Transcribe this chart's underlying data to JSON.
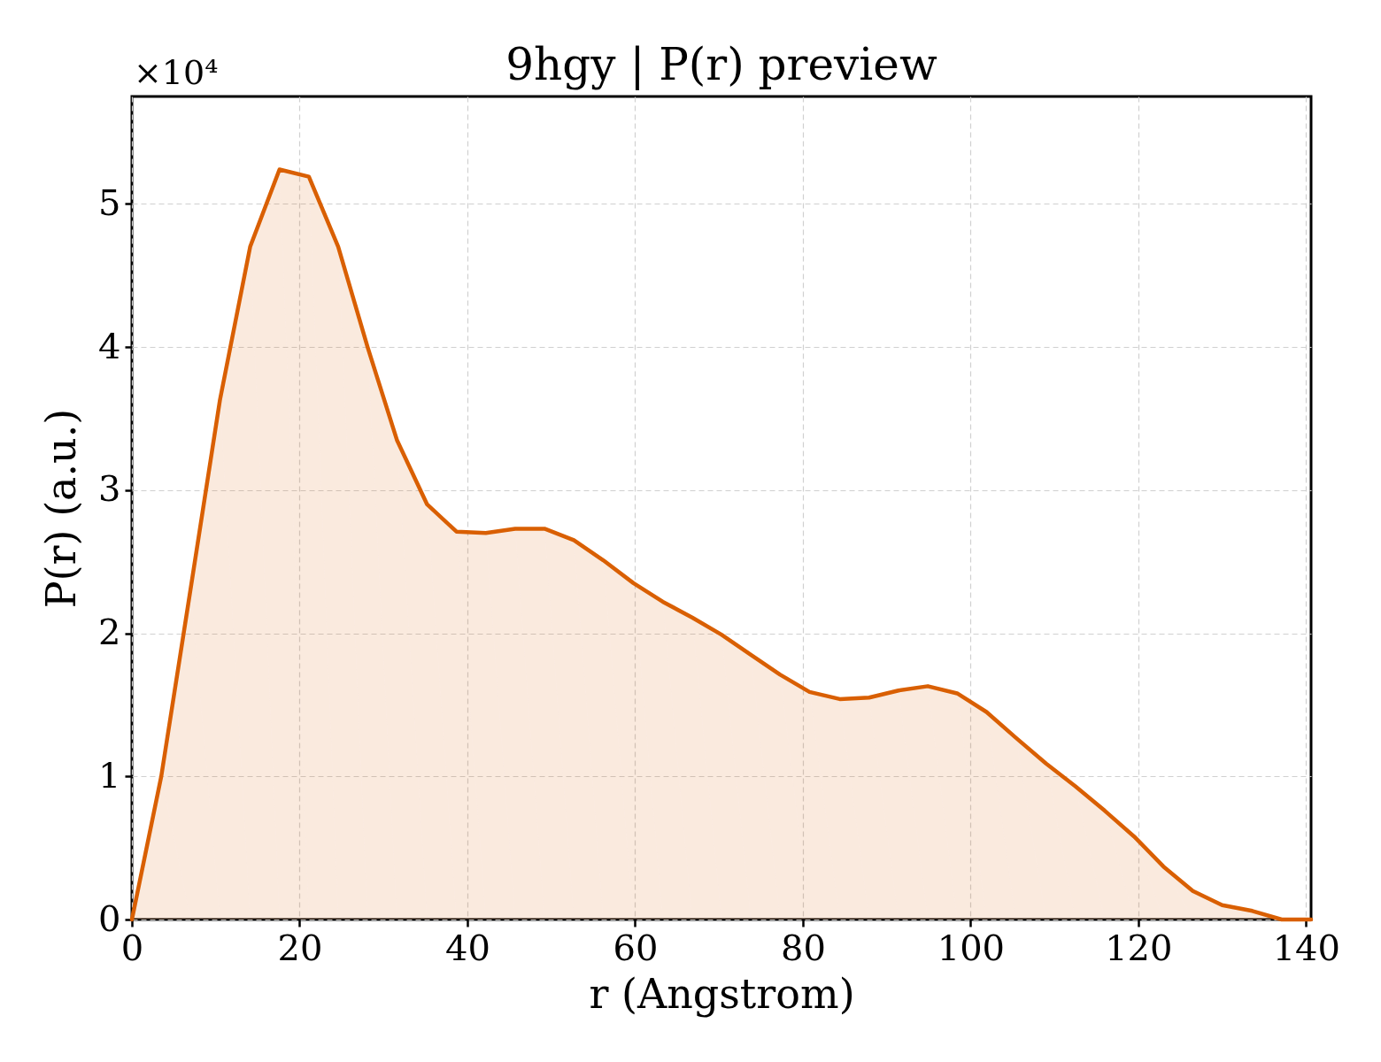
{
  "chart_data": {
    "type": "area",
    "title": "9hgy | P(r) preview",
    "xlabel": "r (Angstrom)",
    "ylabel": "P(r) (a.u.)",
    "annotations": [
      "×10⁴"
    ],
    "x": [
      0,
      3.5,
      7.0,
      10.5,
      14.1,
      17.6,
      21.1,
      24.6,
      28.1,
      31.6,
      35.2,
      38.7,
      42.2,
      45.7,
      49.2,
      52.7,
      56.2,
      59.8,
      63.3,
      66.8,
      70.3,
      73.8,
      77.3,
      80.8,
      84.4,
      87.9,
      91.4,
      94.9,
      98.4,
      101.9,
      105.4,
      109.0,
      112.5,
      116.0,
      119.5,
      123.0,
      126.5,
      130.0,
      133.6,
      137.1,
      140.6
    ],
    "series": [
      {
        "color": "#d95f02",
        "values": [
          0,
          1.0,
          2.31,
          3.63,
          4.7,
          5.24,
          5.19,
          4.7,
          4.0,
          3.35,
          2.9,
          2.71,
          2.7,
          2.73,
          2.73,
          2.65,
          2.51,
          2.35,
          2.22,
          2.11,
          1.99,
          1.85,
          1.71,
          1.59,
          1.54,
          1.55,
          1.6,
          1.63,
          1.58,
          1.45,
          1.27,
          1.09,
          0.93,
          0.76,
          0.58,
          0.37,
          0.2,
          0.1,
          0.06,
          0.0,
          0.0
        ]
      }
    ],
    "xlim": [
      0,
      140.6
    ],
    "ylim": [
      0,
      5.75
    ],
    "xticks": [
      0,
      20,
      40,
      60,
      80,
      100,
      120,
      140
    ],
    "yticks": [
      0,
      1,
      2,
      3,
      4,
      5
    ],
    "grid": true,
    "line_style": "solid"
  }
}
